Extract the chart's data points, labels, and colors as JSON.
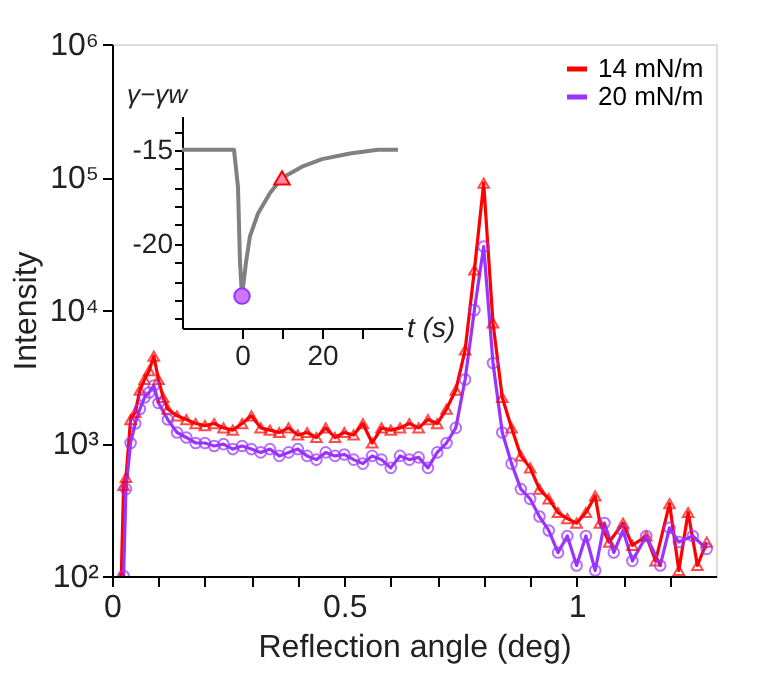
{
  "chart_data": [
    {
      "type": "line",
      "xlabel": "Reflection angle (deg)",
      "ylabel": "Intensity",
      "log": "y",
      "legend": "top right",
      "grid": false,
      "line_style": "solid",
      "xlim": [
        0,
        1.3
      ],
      "xticks": [
        0,
        {
          "value": 0.1,
          "label": null
        },
        {
          "value": 0.2,
          "label": null
        },
        {
          "value": 0.3,
          "label": null
        },
        {
          "value": 0.4,
          "label": null
        },
        0.5,
        {
          "value": 0.6,
          "label": null
        },
        {
          "value": 0.7,
          "label": null
        },
        {
          "value": 0.8,
          "label": null
        },
        {
          "value": 0.9,
          "label": null
        },
        1,
        {
          "value": 1.1,
          "label": null
        },
        {
          "value": 1.2,
          "label": null
        }
      ],
      "ylim": [
        100,
        1000000
      ],
      "yticks": [
        {
          "value": 100,
          "label": "10²"
        },
        {
          "value": 1000,
          "label": "10³"
        },
        {
          "value": 10000,
          "label": "10⁴"
        },
        {
          "value": 100000,
          "label": "10⁵"
        },
        {
          "value": 1000000,
          "label": "10⁶"
        }
      ],
      "series": [
        {
          "name": "14 mN/m",
          "color": "#ff0000",
          "marker": "triangle",
          "x": [
            0.02,
            0.025,
            0.03,
            0.04,
            0.05,
            0.06,
            0.07,
            0.08,
            0.09,
            0.1,
            0.11,
            0.12,
            0.14,
            0.16,
            0.18,
            0.2,
            0.22,
            0.24,
            0.26,
            0.28,
            0.3,
            0.32,
            0.34,
            0.36,
            0.38,
            0.4,
            0.42,
            0.44,
            0.46,
            0.48,
            0.5,
            0.52,
            0.54,
            0.56,
            0.58,
            0.6,
            0.62,
            0.64,
            0.66,
            0.68,
            0.7,
            0.72,
            0.74,
            0.76,
            0.78,
            0.8,
            0.82,
            0.84,
            0.86,
            0.88,
            0.9,
            0.92,
            0.94,
            0.96,
            0.98,
            1.0,
            1.02,
            1.04,
            1.05,
            1.07,
            1.1,
            1.12,
            1.15,
            1.17,
            1.2,
            1.22,
            1.24,
            1.26,
            1.28
          ],
          "values": [
            100,
            480,
            550,
            1500,
            1700,
            2500,
            3000,
            3500,
            4500,
            3000,
            2200,
            1800,
            1600,
            1500,
            1400,
            1350,
            1400,
            1300,
            1250,
            1400,
            1600,
            1300,
            1250,
            1200,
            1300,
            1150,
            1200,
            1100,
            1300,
            1100,
            1200,
            1150,
            1400,
            1000,
            1300,
            1250,
            1300,
            1400,
            1300,
            1500,
            1400,
            1800,
            2500,
            5000,
            20000,
            90000,
            8000,
            2200,
            1300,
            800,
            650,
            450,
            380,
            300,
            270,
            250,
            300,
            400,
            250,
            180,
            250,
            170,
            200,
            130,
            350,
            110,
            300,
            120,
            180
          ]
        },
        {
          "name": "20 mN/m",
          "color": "#9933ff",
          "marker": "circle",
          "x": [
            0.025,
            0.03,
            0.04,
            0.05,
            0.06,
            0.07,
            0.08,
            0.09,
            0.1,
            0.12,
            0.14,
            0.16,
            0.18,
            0.2,
            0.22,
            0.24,
            0.26,
            0.28,
            0.3,
            0.32,
            0.34,
            0.36,
            0.38,
            0.4,
            0.42,
            0.44,
            0.46,
            0.48,
            0.5,
            0.52,
            0.54,
            0.56,
            0.58,
            0.6,
            0.62,
            0.64,
            0.66,
            0.68,
            0.7,
            0.72,
            0.74,
            0.76,
            0.78,
            0.8,
            0.82,
            0.84,
            0.86,
            0.88,
            0.9,
            0.92,
            0.94,
            0.96,
            0.98,
            1.0,
            1.02,
            1.04,
            1.06,
            1.08,
            1.1,
            1.12,
            1.15,
            1.18,
            1.2,
            1.22,
            1.25,
            1.28
          ],
          "values": [
            100,
            450,
            1000,
            1400,
            1800,
            2200,
            2400,
            2700,
            2000,
            1500,
            1200,
            1100,
            1000,
            1000,
            950,
            980,
            900,
            950,
            900,
            850,
            900,
            800,
            850,
            900,
            800,
            750,
            850,
            800,
            820,
            750,
            700,
            800,
            750,
            650,
            800,
            750,
            780,
            650,
            850,
            1000,
            1300,
            3000,
            10000,
            30000,
            4000,
            1200,
            700,
            450,
            380,
            280,
            220,
            150,
            200,
            120,
            200,
            110,
            250,
            150,
            220,
            130,
            200,
            120,
            230,
            180,
            200,
            160
          ]
        }
      ]
    },
    {
      "type": "line",
      "xlabel": "t (s)",
      "ylabel": "γ−γw",
      "grid": false,
      "xlim": [
        -15,
        40
      ],
      "xticks": [
        0,
        {
          "value": 10,
          "label": null
        },
        20,
        {
          "value": 30,
          "label": null
        }
      ],
      "ylim": [
        -24.5,
        -13.2
      ],
      "yticks": [
        {
          "value": -14,
          "label": null
        },
        -15,
        {
          "value": -16,
          "label": null
        },
        {
          "value": -17,
          "label": null
        },
        {
          "value": -18,
          "label": null
        },
        {
          "value": -19,
          "label": null
        },
        -20,
        {
          "value": -21,
          "label": null
        },
        {
          "value": -22,
          "label": null
        },
        {
          "value": -23,
          "label": null
        },
        {
          "value": -24,
          "label": null
        }
      ],
      "series": [
        {
          "type": "line",
          "color": "#808080",
          "x": [
            -15,
            -2,
            -1,
            -0.5,
            0,
            1,
            2,
            4,
            7,
            10,
            15,
            20,
            27,
            34,
            39
          ],
          "values": [
            -15,
            -15,
            -17,
            -21,
            -22.8,
            -21,
            -19.6,
            -18.4,
            -17.3,
            -16.5,
            -15.9,
            -15.5,
            -15.2,
            -15.0,
            -15.0
          ]
        },
        {
          "type": "scatter",
          "color": "#cc77ff",
          "marker": "circle",
          "x": [
            0
          ],
          "values": [
            -22.8
          ]
        },
        {
          "type": "scatter",
          "color": "#ff88aa",
          "marker": "triangle",
          "x": [
            10
          ],
          "values": [
            -16.5
          ]
        }
      ]
    }
  ]
}
